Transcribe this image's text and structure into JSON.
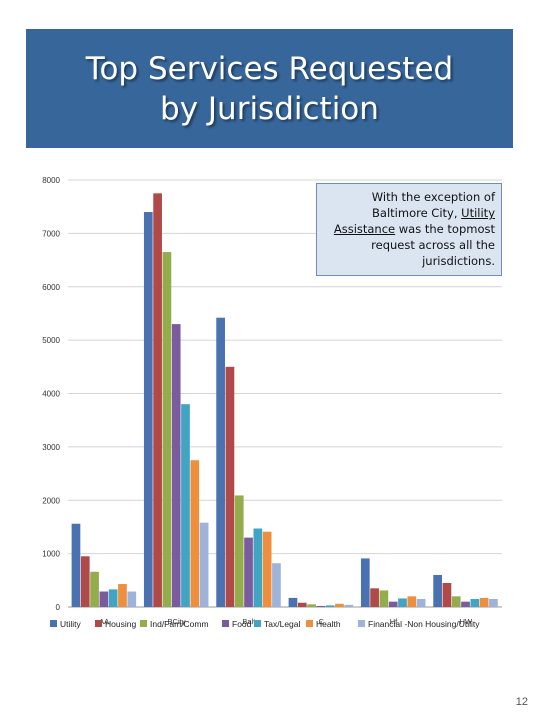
{
  "title": "Top Services Requested\nby Jurisdiction",
  "callout": {
    "before": "With the exception of Baltimore City, ",
    "underlined": "Utility Assistance",
    "after": " was the topmost request across all the jurisdictions."
  },
  "page_number": "12",
  "chart_data": {
    "type": "bar",
    "categories": [
      "AA",
      "BCity",
      "Balt",
      "C",
      "Hf",
      "HW"
    ],
    "series": [
      {
        "name": "Utility",
        "color": "#4a72b0",
        "values": [
          1560,
          7400,
          5420,
          170,
          910,
          600
        ]
      },
      {
        "name": "Housing",
        "color": "#b04a48",
        "values": [
          950,
          7750,
          4500,
          80,
          350,
          450
        ]
      },
      {
        "name": "Ind/Fam/Comm",
        "color": "#93ad4c",
        "values": [
          660,
          6650,
          2090,
          50,
          310,
          200
        ]
      },
      {
        "name": "Food",
        "color": "#7a5c9e",
        "values": [
          290,
          5300,
          1300,
          20,
          100,
          100
        ]
      },
      {
        "name": "Tax/Legal",
        "color": "#41a4c2",
        "values": [
          330,
          3800,
          1470,
          30,
          160,
          150
        ]
      },
      {
        "name": "Health",
        "color": "#ee8f3e",
        "values": [
          430,
          2750,
          1410,
          60,
          200,
          170
        ]
      },
      {
        "name": "Financial -Non Housing/Utility",
        "color": "#9db3da",
        "values": [
          290,
          1580,
          820,
          40,
          150,
          150
        ]
      }
    ],
    "ylim": [
      0,
      8000
    ],
    "yticks": [
      0,
      1000,
      2000,
      3000,
      4000,
      5000,
      6000,
      7000,
      8000
    ],
    "grid": true,
    "legend_position": "bottom"
  }
}
